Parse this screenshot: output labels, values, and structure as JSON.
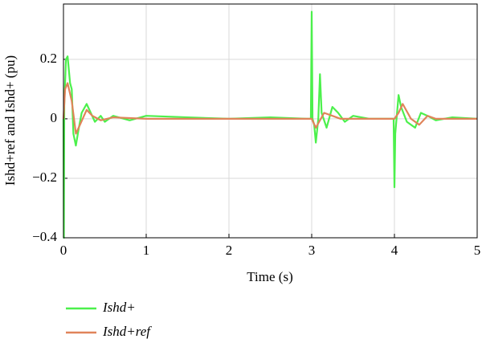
{
  "chart_data": {
    "type": "line",
    "x_label": "Time (s)",
    "y_label": "Ishd+ref and Ishd+ (pu)",
    "xlim": [
      0,
      5
    ],
    "xticks": [
      0,
      1,
      2,
      3,
      4,
      5
    ],
    "ylim": [
      -0.4,
      0.386
    ],
    "yticks": [
      {
        "value": -0.4,
        "label": "−0.4"
      },
      {
        "value": -0.2,
        "label": "−0.2"
      },
      0,
      0.2
    ],
    "grid": true,
    "series": [
      {
        "name": "Ishd+",
        "color": "#4cf04c",
        "x": [
          0,
          0.005,
          0.01,
          0.03,
          0.05,
          0.08,
          0.1,
          0.12,
          0.15,
          0.18,
          0.22,
          0.28,
          0.33,
          0.38,
          0.45,
          0.5,
          0.6,
          0.8,
          1.0,
          1.5,
          2.0,
          2.5,
          2.95,
          2.99,
          3.0,
          3.01,
          3.03,
          3.05,
          3.08,
          3.1,
          3.12,
          3.18,
          3.25,
          3.32,
          3.4,
          3.5,
          3.7,
          3.99,
          4.0,
          4.01,
          4.05,
          4.08,
          4.15,
          4.25,
          4.32,
          4.4,
          4.5,
          4.7,
          5.0
        ],
        "values": [
          0,
          -0.4,
          0.05,
          0.2,
          0.21,
          0.12,
          0.1,
          -0.05,
          -0.09,
          -0.04,
          0.02,
          0.05,
          0.02,
          -0.01,
          0.01,
          -0.01,
          0.01,
          -0.005,
          0.01,
          0.005,
          0.0,
          0.005,
          0.0,
          0.0,
          0.36,
          0.0,
          -0.02,
          -0.08,
          0.0,
          0.15,
          0.02,
          -0.03,
          0.04,
          0.02,
          -0.01,
          0.01,
          0.0,
          0.0,
          -0.23,
          -0.05,
          0.08,
          0.04,
          -0.01,
          -0.03,
          0.02,
          0.01,
          -0.005,
          0.005,
          0.0
        ]
      },
      {
        "name": "Ishd+ref",
        "color": "#e0845a",
        "x": [
          0,
          0.02,
          0.05,
          0.1,
          0.15,
          0.2,
          0.28,
          0.35,
          0.45,
          0.6,
          1,
          3,
          3.05,
          3.15,
          3.25,
          3.35,
          4,
          4.05,
          4.1,
          4.2,
          4.3,
          4.4,
          4.5,
          5
        ],
        "values": [
          0,
          0.1,
          0.12,
          0.06,
          -0.05,
          -0.02,
          0.03,
          0.01,
          -0.005,
          0.005,
          0,
          0,
          -0.03,
          0.02,
          0.01,
          0.0,
          0,
          0.02,
          0.05,
          0.0,
          -0.02,
          0.01,
          0,
          0
        ]
      }
    ]
  }
}
